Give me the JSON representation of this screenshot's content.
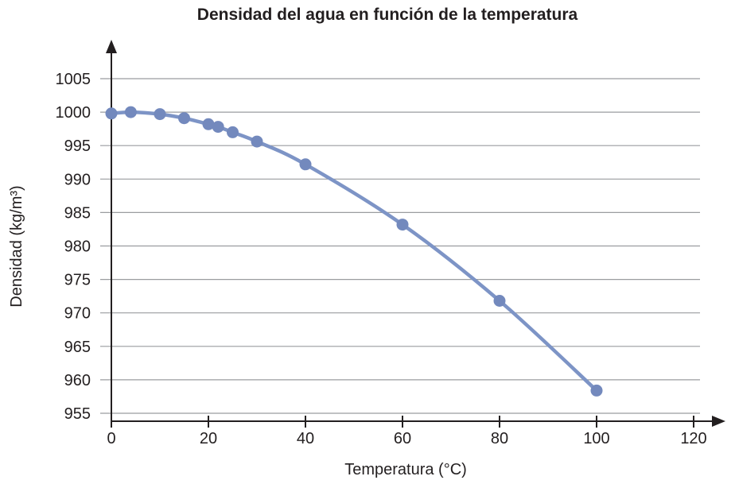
{
  "chart_data": {
    "type": "line",
    "title": "Densidad del agua en función de la temperatura",
    "xlabel": "Temperatura (°C)",
    "ylabel": "Densidad (kg/m³)",
    "x": [
      0,
      4,
      10,
      15,
      20,
      22,
      25,
      30,
      40,
      60,
      80,
      100
    ],
    "y": [
      999.8,
      1000.0,
      999.7,
      999.1,
      998.2,
      997.8,
      997.0,
      995.6,
      992.2,
      983.2,
      971.8,
      958.4
    ],
    "xlim": [
      0,
      127
    ],
    "ylim": [
      955,
      1007
    ],
    "xticks": [
      0,
      20,
      40,
      60,
      80,
      100,
      120
    ],
    "yticks": [
      955,
      960,
      965,
      970,
      975,
      980,
      985,
      990,
      995,
      1000,
      1005
    ],
    "grid": true,
    "legend": "none",
    "line_color": "#7d94c6",
    "marker_color": "#7389bd",
    "grid_color": "#9a9c9f",
    "axis_color": "#231f20",
    "text_color": "#231f20"
  }
}
